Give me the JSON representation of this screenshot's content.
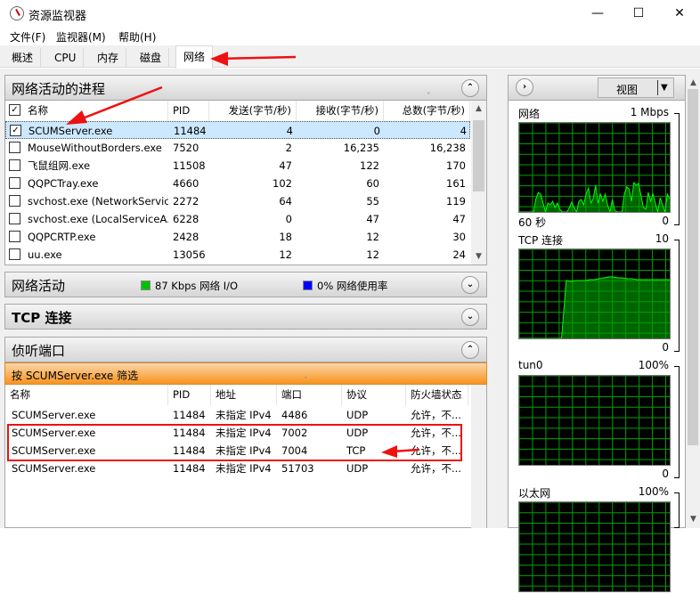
{
  "window": {
    "title": "资源监视器",
    "icon": "resource-monitor-icon",
    "controls": [
      "minimize",
      "maximize",
      "close"
    ]
  },
  "menu": [
    "文件(F)",
    "监视器(M)",
    "帮助(H)"
  ],
  "tabs": [
    {
      "label": "概述"
    },
    {
      "label": "CPU"
    },
    {
      "label": "内存"
    },
    {
      "label": "磁盘"
    },
    {
      "label": "网络",
      "active": true
    }
  ],
  "processes": {
    "title": "网络活动的进程",
    "columns": [
      "名称",
      "PID",
      "发送(字节/秒)",
      "接收(字节/秒)",
      "总数(字节/秒)"
    ],
    "sorted_column": "总数(字节/秒)",
    "rows": [
      {
        "name": "SCUMServer.exe",
        "pid": "11484",
        "send": "4",
        "recv": "0",
        "total": "4",
        "checked": true
      },
      {
        "name": "MouseWithoutBorders.exe",
        "pid": "7520",
        "send": "2",
        "recv": "16,235",
        "total": "16,238",
        "checked": false
      },
      {
        "name": "飞鼠组网.exe",
        "pid": "11508",
        "send": "47",
        "recv": "122",
        "total": "170",
        "checked": false
      },
      {
        "name": "QQPCTray.exe",
        "pid": "4660",
        "send": "102",
        "recv": "60",
        "total": "161",
        "checked": false
      },
      {
        "name": "svchost.exe (NetworkServic...",
        "pid": "2272",
        "send": "64",
        "recv": "55",
        "total": "119",
        "checked": false
      },
      {
        "name": "svchost.exe (LocalServiceA...",
        "pid": "6228",
        "send": "0",
        "recv": "47",
        "total": "47",
        "checked": false
      },
      {
        "name": "QQPCRTP.exe",
        "pid": "2428",
        "send": "18",
        "recv": "12",
        "total": "30",
        "checked": false
      },
      {
        "name": "uu.exe",
        "pid": "13056",
        "send": "12",
        "recv": "12",
        "total": "24",
        "checked": false
      }
    ]
  },
  "network_activity": {
    "title": "网络活动",
    "io": "87 Kbps 网络 I/O",
    "usage": "0% 网络使用率",
    "io_color": "#00c000",
    "usage_color": "#0000ff"
  },
  "tcp": {
    "title": "TCP 连接"
  },
  "listening": {
    "title": "侦听端口",
    "filter": "按 SCUMServer.exe 筛选",
    "columns": [
      "名称",
      "PID",
      "地址",
      "端口",
      "协议",
      "防火墙状态"
    ],
    "sorted_column": "端口",
    "rows": [
      {
        "name": "SCUMServer.exe",
        "pid": "11484",
        "addr": "未指定 IPv4",
        "port": "4486",
        "proto": "UDP",
        "fw": "允许，不..."
      },
      {
        "name": "SCUMServer.exe",
        "pid": "11484",
        "addr": "未指定 IPv4",
        "port": "7002",
        "proto": "UDP",
        "fw": "允许，不..."
      },
      {
        "name": "SCUMServer.exe",
        "pid": "11484",
        "addr": "未指定 IPv4",
        "port": "7004",
        "proto": "TCP",
        "fw": "允许，不..."
      },
      {
        "name": "SCUMServer.exe",
        "pid": "11484",
        "addr": "未指定 IPv4",
        "port": "51703",
        "proto": "UDP",
        "fw": "允许，不..."
      }
    ]
  },
  "right": {
    "view_label": "视图",
    "graphs": [
      {
        "title": "网络",
        "max": "1 Mbps",
        "time": "60 秒",
        "min": "0"
      },
      {
        "title": "TCP 连接",
        "max": "10",
        "min": "0"
      },
      {
        "title": "tun0",
        "max": "100%",
        "min": "0"
      },
      {
        "title": "以太网",
        "max": "100%"
      }
    ]
  },
  "chart_data": [
    {
      "type": "area",
      "title": "网络",
      "ylim": [
        0,
        1
      ],
      "unit": "Mbps",
      "values": [
        0,
        0,
        0,
        0,
        0,
        0,
        0,
        0.15,
        0.22,
        0.2,
        0.1,
        0,
        0.1,
        0.08,
        0.12,
        0.05,
        0.1,
        0.03,
        0,
        0,
        0,
        0.05,
        0.11,
        0.05,
        0,
        0.12,
        0.14,
        0.08,
        0.2,
        0.27,
        0.1,
        0.15,
        0.3,
        0.1,
        0.2,
        0.12,
        0.2,
        0.08,
        0,
        0.14,
        0.02,
        0,
        0,
        0,
        0.2,
        0.28,
        0.26,
        0.12,
        0.33,
        0.3,
        0.32,
        0.18,
        0.05,
        0.03,
        0.22,
        0.12,
        0.2,
        0.1,
        0,
        0.16,
        0.08,
        0,
        0.2,
        0.15
      ],
      "series_color": "#00ff00"
    },
    {
      "type": "area",
      "title": "TCP 连接",
      "ylim": [
        0,
        10
      ],
      "values": [
        0,
        0,
        0,
        0,
        0,
        0,
        0,
        0,
        0,
        0,
        6.5,
        6.4,
        6.5,
        6.5,
        6.5,
        6.6,
        6.6,
        6.7,
        6.8,
        6.9,
        6.9,
        6.8,
        6.8,
        6.7,
        6.7,
        6.6,
        6.6,
        6.6,
        6.6,
        6.6,
        6.6,
        6.6,
        6.6
      ],
      "series_color": "#00ff00"
    },
    {
      "type": "area",
      "title": "tun0",
      "ylim": [
        0,
        100
      ],
      "values": []
    },
    {
      "type": "area",
      "title": "以太网",
      "ylim": [
        0,
        100
      ],
      "values": []
    }
  ]
}
